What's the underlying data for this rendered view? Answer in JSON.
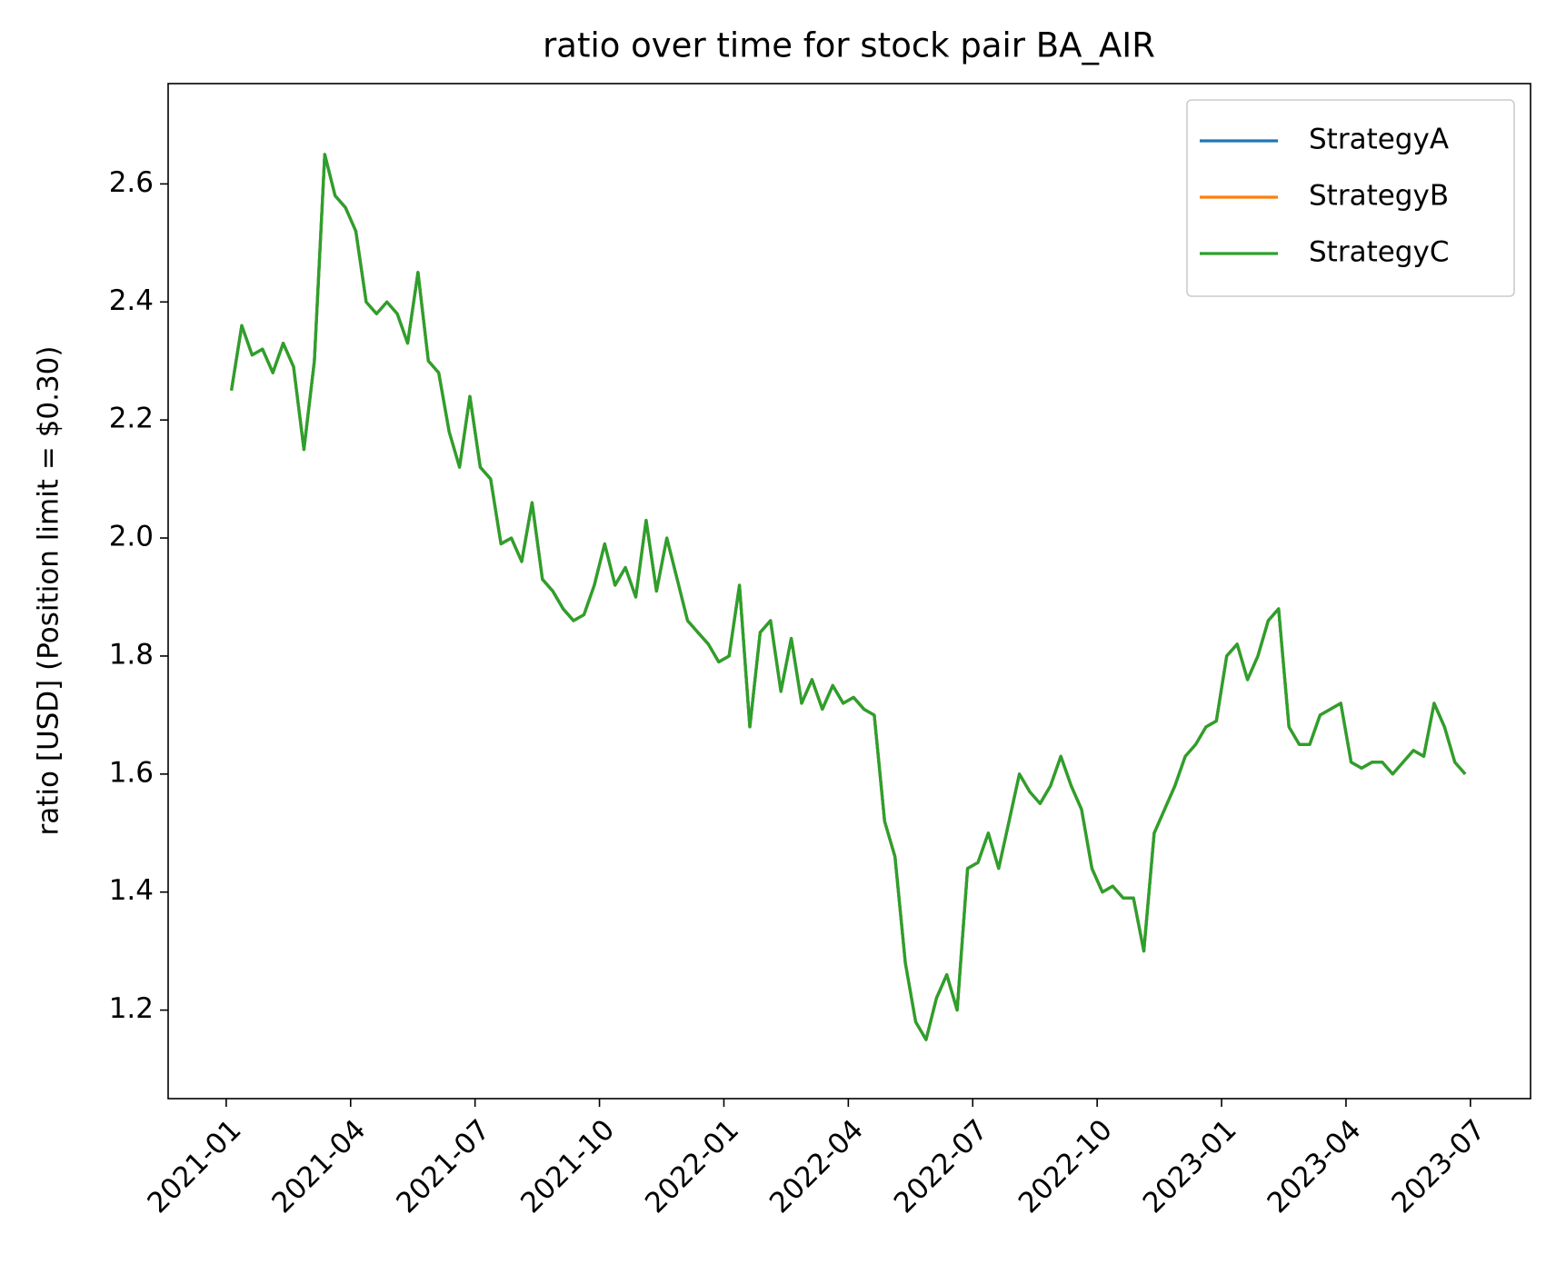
{
  "chart_data": {
    "type": "line",
    "title": "ratio over time for stock pair BA_AIR",
    "y_label": "ratio [USD] (Position limit = $0.30)",
    "x": [
      "2021-01",
      "2021-01",
      "2021-01",
      "2021-01",
      "2021-02",
      "2021-02",
      "2021-02",
      "2021-02",
      "2021-03",
      "2021-03",
      "2021-03",
      "2021-03",
      "2021-04",
      "2021-04",
      "2021-04",
      "2021-04",
      "2021-05",
      "2021-05",
      "2021-05",
      "2021-05",
      "2021-06",
      "2021-06",
      "2021-06",
      "2021-06",
      "2021-07",
      "2021-07",
      "2021-07",
      "2021-07",
      "2021-08",
      "2021-08",
      "2021-08",
      "2021-08",
      "2021-09",
      "2021-09",
      "2021-09",
      "2021-09",
      "2021-10",
      "2021-10",
      "2021-10",
      "2021-10",
      "2021-11",
      "2021-11",
      "2021-11",
      "2021-11",
      "2021-12",
      "2021-12",
      "2021-12",
      "2021-12",
      "2022-01",
      "2022-01",
      "2022-01",
      "2022-01",
      "2022-02",
      "2022-02",
      "2022-02",
      "2022-02",
      "2022-03",
      "2022-03",
      "2022-03",
      "2022-03",
      "2022-04",
      "2022-04",
      "2022-04",
      "2022-04",
      "2022-05",
      "2022-05",
      "2022-05",
      "2022-05",
      "2022-06",
      "2022-06",
      "2022-06",
      "2022-06",
      "2022-07",
      "2022-07",
      "2022-07",
      "2022-07",
      "2022-08",
      "2022-08",
      "2022-08",
      "2022-08",
      "2022-09",
      "2022-09",
      "2022-09",
      "2022-09",
      "2022-10",
      "2022-10",
      "2022-10",
      "2022-10",
      "2022-11",
      "2022-11",
      "2022-11",
      "2022-11",
      "2022-12",
      "2022-12",
      "2022-12",
      "2022-12",
      "2023-01",
      "2023-01",
      "2023-01",
      "2023-01",
      "2023-02",
      "2023-02",
      "2023-02",
      "2023-02",
      "2023-03",
      "2023-03",
      "2023-03",
      "2023-03",
      "2023-04",
      "2023-04",
      "2023-04",
      "2023-04",
      "2023-05",
      "2023-05",
      "2023-05",
      "2023-05",
      "2023-06",
      "2023-06",
      "2023-06",
      "2023-06"
    ],
    "series": [
      {
        "name": "StrategyA",
        "color": "#1f77b4",
        "values": [
          2.25,
          2.36,
          2.31,
          2.32,
          2.28,
          2.33,
          2.29,
          2.15,
          2.3,
          2.65,
          2.58,
          2.56,
          2.52,
          2.4,
          2.38,
          2.4,
          2.38,
          2.33,
          2.45,
          2.3,
          2.28,
          2.18,
          2.12,
          2.24,
          2.12,
          2.1,
          1.99,
          2.0,
          1.96,
          2.06,
          1.93,
          1.91,
          1.88,
          1.86,
          1.87,
          1.92,
          1.99,
          1.92,
          1.95,
          1.9,
          2.03,
          1.91,
          2.0,
          1.93,
          1.86,
          1.84,
          1.82,
          1.79,
          1.8,
          1.92,
          1.68,
          1.84,
          1.86,
          1.74,
          1.83,
          1.72,
          1.76,
          1.71,
          1.75,
          1.72,
          1.73,
          1.71,
          1.7,
          1.52,
          1.46,
          1.28,
          1.18,
          1.15,
          1.22,
          1.26,
          1.2,
          1.44,
          1.45,
          1.5,
          1.44,
          1.52,
          1.6,
          1.57,
          1.55,
          1.58,
          1.63,
          1.58,
          1.54,
          1.44,
          1.4,
          1.41,
          1.39,
          1.39,
          1.3,
          1.5,
          1.54,
          1.58,
          1.63,
          1.65,
          1.68,
          1.69,
          1.8,
          1.82,
          1.76,
          1.8,
          1.86,
          1.88,
          1.68,
          1.65,
          1.65,
          1.7,
          1.71,
          1.72,
          1.62,
          1.61,
          1.62,
          1.62,
          1.6,
          1.62,
          1.64,
          1.63,
          1.72,
          1.68,
          1.62,
          1.6
        ]
      },
      {
        "name": "StrategyB",
        "color": "#ff7f0e",
        "values": [
          2.25,
          2.36,
          2.31,
          2.32,
          2.28,
          2.33,
          2.29,
          2.15,
          2.3,
          2.65,
          2.58,
          2.56,
          2.52,
          2.4,
          2.38,
          2.4,
          2.38,
          2.33,
          2.45,
          2.3,
          2.28,
          2.18,
          2.12,
          2.24,
          2.12,
          2.1,
          1.99,
          2.0,
          1.96,
          2.06,
          1.93,
          1.91,
          1.88,
          1.86,
          1.87,
          1.92,
          1.99,
          1.92,
          1.95,
          1.9,
          2.03,
          1.91,
          2.0,
          1.93,
          1.86,
          1.84,
          1.82,
          1.79,
          1.8,
          1.92,
          1.68,
          1.84,
          1.86,
          1.74,
          1.83,
          1.72,
          1.76,
          1.71,
          1.75,
          1.72,
          1.73,
          1.71,
          1.7,
          1.52,
          1.46,
          1.28,
          1.18,
          1.15,
          1.22,
          1.26,
          1.2,
          1.44,
          1.45,
          1.5,
          1.44,
          1.52,
          1.6,
          1.57,
          1.55,
          1.58,
          1.63,
          1.58,
          1.54,
          1.44,
          1.4,
          1.41,
          1.39,
          1.39,
          1.3,
          1.5,
          1.54,
          1.58,
          1.63,
          1.65,
          1.68,
          1.69,
          1.8,
          1.82,
          1.76,
          1.8,
          1.86,
          1.88,
          1.68,
          1.65,
          1.65,
          1.7,
          1.71,
          1.72,
          1.62,
          1.61,
          1.62,
          1.62,
          1.6,
          1.62,
          1.64,
          1.63,
          1.72,
          1.68,
          1.62,
          1.6
        ]
      },
      {
        "name": "StrategyC",
        "color": "#2ca02c",
        "values": [
          2.25,
          2.36,
          2.31,
          2.32,
          2.28,
          2.33,
          2.29,
          2.15,
          2.3,
          2.65,
          2.58,
          2.56,
          2.52,
          2.4,
          2.38,
          2.4,
          2.38,
          2.33,
          2.45,
          2.3,
          2.28,
          2.18,
          2.12,
          2.24,
          2.12,
          2.1,
          1.99,
          2.0,
          1.96,
          2.06,
          1.93,
          1.91,
          1.88,
          1.86,
          1.87,
          1.92,
          1.99,
          1.92,
          1.95,
          1.9,
          2.03,
          1.91,
          2.0,
          1.93,
          1.86,
          1.84,
          1.82,
          1.79,
          1.8,
          1.92,
          1.68,
          1.84,
          1.86,
          1.74,
          1.83,
          1.72,
          1.76,
          1.71,
          1.75,
          1.72,
          1.73,
          1.71,
          1.7,
          1.52,
          1.46,
          1.28,
          1.18,
          1.15,
          1.22,
          1.26,
          1.2,
          1.44,
          1.45,
          1.5,
          1.44,
          1.52,
          1.6,
          1.57,
          1.55,
          1.58,
          1.63,
          1.58,
          1.54,
          1.44,
          1.4,
          1.41,
          1.39,
          1.39,
          1.3,
          1.5,
          1.54,
          1.58,
          1.63,
          1.65,
          1.68,
          1.69,
          1.8,
          1.82,
          1.76,
          1.8,
          1.86,
          1.88,
          1.68,
          1.65,
          1.65,
          1.7,
          1.71,
          1.72,
          1.62,
          1.61,
          1.62,
          1.62,
          1.6,
          1.62,
          1.64,
          1.63,
          1.72,
          1.68,
          1.62,
          1.6
        ]
      }
    ],
    "xticks": [
      "2021-01",
      "2021-04",
      "2021-07",
      "2021-10",
      "2022-01",
      "2022-04",
      "2022-07",
      "2022-10",
      "2023-01",
      "2023-04",
      "2023-07"
    ],
    "ylim": [
      1.05,
      2.77
    ],
    "yticks": [
      1.2,
      1.4,
      1.6,
      1.8,
      {
        "value": 2,
        "label": "2.0"
      },
      2.2,
      2.4,
      2.6
    ],
    "grid": false,
    "legend": "upper right"
  }
}
